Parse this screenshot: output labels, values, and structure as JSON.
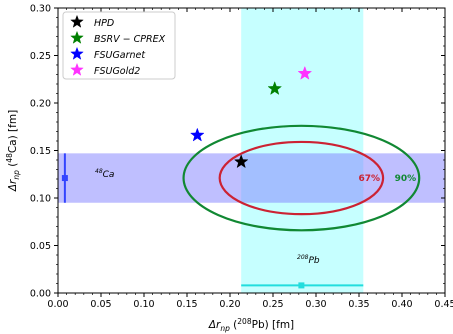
{
  "chart_data": {
    "type": "scatter",
    "xlabel_main": "Δr",
    "xlabel_sub": "np",
    "xlabel_rest": " (",
    "xlabel_sup": "208",
    "xlabel_end": "Pb) [fm]",
    "ylabel_main": "Δr",
    "ylabel_sub": "np",
    "ylabel_rest": " (",
    "ylabel_sup": "48",
    "ylabel_end": "Ca) [fm]",
    "xlim": [
      0.0,
      0.45
    ],
    "ylim": [
      0.0,
      0.3
    ],
    "x_ticks": [
      "0.00",
      "0.05",
      "0.10",
      "0.15",
      "0.20",
      "0.25",
      "0.30",
      "0.35",
      "0.40",
      "0.45"
    ],
    "y_ticks": [
      "0.00",
      "0.05",
      "0.10",
      "0.15",
      "0.20",
      "0.25",
      "0.30"
    ],
    "x_tick_values": [
      0.0,
      0.05,
      0.1,
      0.15,
      0.2,
      0.25,
      0.3,
      0.35,
      0.4,
      0.45
    ],
    "y_tick_values": [
      0.0,
      0.05,
      0.1,
      0.15,
      0.2,
      0.25,
      0.3
    ],
    "series": [
      {
        "name": "HPD",
        "color": "#000000",
        "marker": "star",
        "points": [
          [
            0.213,
            0.138
          ]
        ]
      },
      {
        "name": "BSRV − CPREX",
        "color": "#008000",
        "marker": "star",
        "points": [
          [
            0.252,
            0.215
          ]
        ]
      },
      {
        "name": "FSUGarnet",
        "color": "#0000ff",
        "marker": "star",
        "points": [
          [
            0.162,
            0.166
          ]
        ]
      },
      {
        "name": "FSUGold2",
        "color": "#ff33ff",
        "marker": "star",
        "points": [
          [
            0.287,
            0.231
          ]
        ]
      }
    ],
    "bands": {
      "ca48": {
        "label_sup": "48",
        "label": "Ca",
        "color": "#8080ff",
        "ymin": 0.095,
        "ymax": 0.147,
        "center": 0.121,
        "marker_x": 0.008
      },
      "pb208": {
        "label_sup": "208",
        "label": "Pb",
        "color": "#80ffff",
        "xmin": 0.213,
        "xmax": 0.355,
        "center": 0.283,
        "marker_y": 0.008
      }
    },
    "ellipses": [
      {
        "label": "67%",
        "color": "#cc2233",
        "cx": 0.283,
        "cy": 0.121,
        "rx": 0.095,
        "ry": 0.038
      },
      {
        "label": "90%",
        "color": "#118833",
        "cx": 0.283,
        "cy": 0.121,
        "rx": 0.137,
        "ry": 0.055
      }
    ],
    "legend_position": "top-left"
  }
}
